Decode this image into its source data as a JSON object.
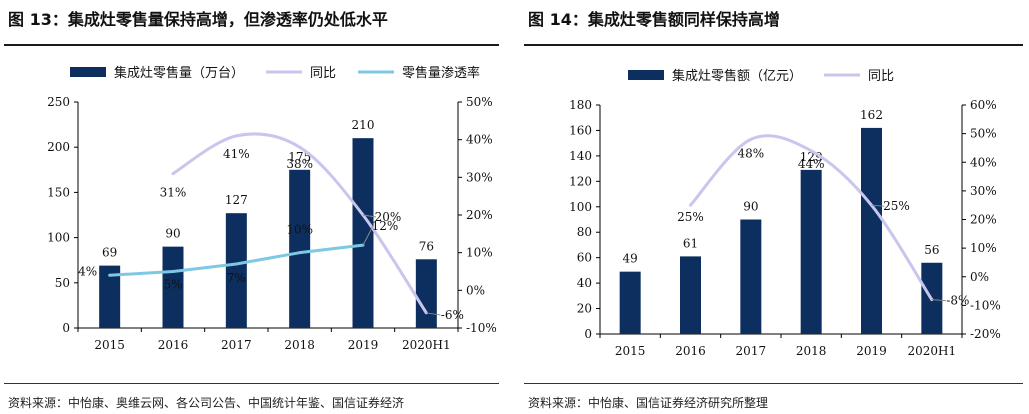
{
  "panels": [
    {
      "title": "图 13：集成灶零售量保持高增，但渗透率仍处低水平",
      "source": "资料来源：中怡康、奥维云网、各公司公告、中国统计年鉴、国信证券经济",
      "colors": {
        "bar": "#0d2f5f",
        "yoy": "#c9c6ee",
        "rate": "#7ec8e3"
      }
    },
    {
      "title": "图 14：集成灶零售额同样保持高增",
      "source": "资料来源：中怡康、国信证券经济研究所整理",
      "colors": {
        "bar": "#0d2f5f",
        "yoy": "#c9c6ee"
      }
    }
  ],
  "chart_data": [
    {
      "type": "bar",
      "title": "图 13：集成灶零售量保持高增，但渗透率仍处低水平",
      "categories": [
        "2015",
        "2016",
        "2017",
        "2018",
        "2019",
        "2020H1"
      ],
      "series": [
        {
          "name": "集成灶零售量（万台）",
          "type": "bar",
          "axis": "left",
          "values": [
            69,
            90,
            127,
            175,
            210,
            76
          ],
          "labels": [
            "69",
            "90",
            "127",
            "175",
            "210",
            "76"
          ]
        },
        {
          "name": "同比",
          "type": "line",
          "axis": "right",
          "values": [
            null,
            31,
            41,
            38,
            20,
            -6
          ],
          "labels": [
            "",
            "31%",
            "41%",
            "38%",
            "20%",
            "-6%"
          ]
        },
        {
          "name": "零售量渗透率",
          "type": "line",
          "axis": "right",
          "values": [
            4,
            5,
            7,
            10,
            12,
            null
          ],
          "labels": [
            "4%",
            "5%",
            "7%",
            "10%",
            "12%",
            ""
          ]
        }
      ],
      "ylim_left": [
        0,
        250
      ],
      "yticks_left": [
        "0",
        "50",
        "100",
        "150",
        "200",
        "250"
      ],
      "ylim_right": [
        -10,
        50
      ],
      "yticks_right": [
        "-10%",
        "0%",
        "10%",
        "20%",
        "30%",
        "40%",
        "50%"
      ],
      "legend": "top"
    },
    {
      "type": "bar",
      "title": "图 14：集成灶零售额同样保持高增",
      "categories": [
        "2015",
        "2016",
        "2017",
        "2018",
        "2019",
        "2020H1"
      ],
      "series": [
        {
          "name": "集成灶零售额（亿元）",
          "type": "bar",
          "axis": "left",
          "values": [
            49,
            61,
            90,
            129,
            162,
            56
          ],
          "labels": [
            "49",
            "61",
            "90",
            "129",
            "162",
            "56"
          ]
        },
        {
          "name": "同比",
          "type": "line",
          "axis": "right",
          "values": [
            null,
            25,
            48,
            44,
            25,
            -8
          ],
          "labels": [
            "",
            "25%",
            "48%",
            "44%",
            "25%",
            "-8%"
          ]
        }
      ],
      "ylim_left": [
        0,
        180
      ],
      "yticks_left": [
        "0",
        "20",
        "40",
        "60",
        "80",
        "100",
        "120",
        "140",
        "160",
        "180"
      ],
      "ylim_right": [
        -20,
        60
      ],
      "yticks_right": [
        "-20%",
        "-10%",
        "0%",
        "10%",
        "20%",
        "30%",
        "40%",
        "50%",
        "60%"
      ],
      "legend": "top"
    }
  ]
}
